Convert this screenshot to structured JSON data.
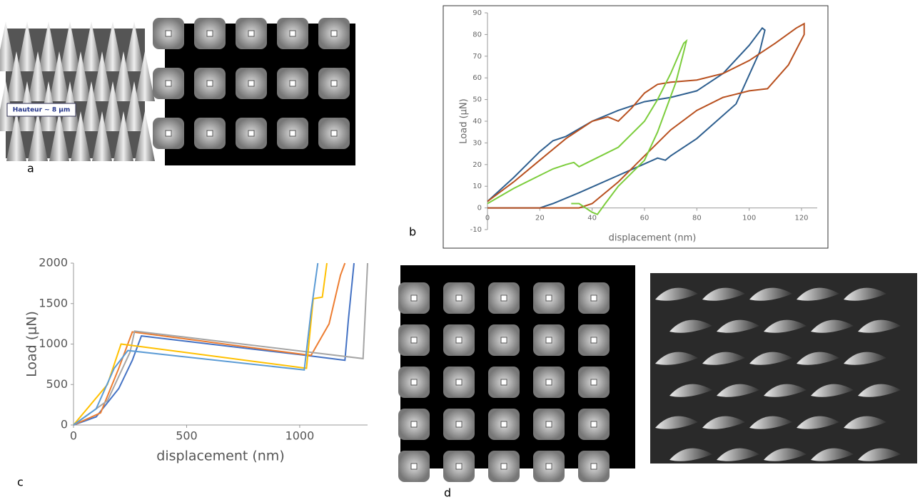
{
  "panel_labels": [
    "a",
    "b",
    "c",
    "d"
  ],
  "image_caption": "Hauteur ~ 8 µm",
  "chart_data": [
    {
      "type": "line",
      "xlabel": "displacement  (nm)",
      "ylabel": "Load (μN)",
      "xlim": [
        0,
        126
      ],
      "ylim": [
        -10,
        90
      ],
      "xticks": [
        0,
        20,
        40,
        60,
        80,
        100,
        120
      ],
      "yticks": [
        -10,
        0,
        10,
        20,
        30,
        40,
        50,
        60,
        70,
        80,
        90
      ],
      "series": [
        {
          "color": "#2e5f8f",
          "x": [
            0,
            10,
            20,
            25,
            30,
            40,
            50,
            60,
            70,
            80,
            90,
            100,
            105,
            106,
            104,
            95,
            80,
            70,
            68,
            65,
            50,
            35,
            25,
            20,
            10,
            0
          ],
          "values": [
            3,
            14,
            26,
            31,
            33,
            40,
            45,
            49,
            51,
            54,
            62,
            75,
            83,
            82,
            72,
            48,
            32,
            24,
            22,
            23,
            15,
            7,
            2,
            0,
            0,
            0
          ]
        },
        {
          "color": "#b8501f",
          "x": [
            0,
            10,
            20,
            30,
            40,
            46,
            50,
            55,
            60,
            65,
            70,
            80,
            90,
            100,
            110,
            118,
            121,
            121,
            115,
            107,
            100,
            90,
            80,
            70,
            60,
            50,
            40,
            35,
            20,
            0
          ],
          "values": [
            3,
            12,
            22,
            32,
            40,
            42,
            40,
            46,
            53,
            57,
            58,
            59,
            62,
            68,
            76,
            83,
            85,
            80,
            66,
            55,
            54,
            51,
            45,
            36,
            24,
            12,
            2,
            0,
            0,
            0
          ]
        },
        {
          "color": "#7ccd3c",
          "x": [
            0,
            10,
            20,
            25,
            30,
            33,
            35,
            40,
            50,
            55,
            60,
            65,
            70,
            75,
            76,
            75,
            72,
            65,
            60,
            50,
            45,
            42,
            40,
            35,
            32
          ],
          "values": [
            2,
            9,
            15,
            18,
            20,
            21,
            19,
            22,
            28,
            34,
            40,
            50,
            62,
            76,
            77,
            72,
            58,
            35,
            22,
            10,
            2,
            -3,
            -2,
            2,
            2
          ]
        }
      ]
    },
    {
      "type": "line",
      "xlabel": "displacement (nm)",
      "ylabel": "Load (μN)",
      "xlim": [
        0,
        1300
      ],
      "ylim": [
        0,
        2000
      ],
      "xticks": [
        0,
        500,
        1000
      ],
      "yticks": [
        0,
        500,
        1000,
        1500,
        2000
      ],
      "series": [
        {
          "color": "#4472c4",
          "x": [
            0,
            100,
            200,
            260,
            300,
            1000,
            1200,
            1215,
            1240
          ],
          "values": [
            0,
            100,
            450,
            800,
            1100,
            870,
            800,
            1300,
            2000
          ]
        },
        {
          "color": "#ed7d31",
          "x": [
            0,
            120,
            200,
            260,
            1050,
            1130,
            1180,
            1200
          ],
          "values": [
            0,
            150,
            700,
            1150,
            860,
            1250,
            1850,
            2000
          ]
        },
        {
          "color": "#a5a5a5",
          "x": [
            0,
            150,
            250,
            270,
            1280,
            1300
          ],
          "values": [
            0,
            300,
            900,
            1160,
            820,
            2000
          ]
        },
        {
          "color": "#ffc000",
          "x": [
            0,
            150,
            210,
            1030,
            1060,
            1100,
            1120
          ],
          "values": [
            0,
            500,
            1000,
            700,
            1560,
            1580,
            2000
          ]
        },
        {
          "color": "#5b9bd5",
          "x": [
            0,
            100,
            180,
            240,
            1020,
            1050,
            1080
          ],
          "values": [
            0,
            200,
            700,
            920,
            680,
            1400,
            2000
          ]
        }
      ]
    }
  ]
}
